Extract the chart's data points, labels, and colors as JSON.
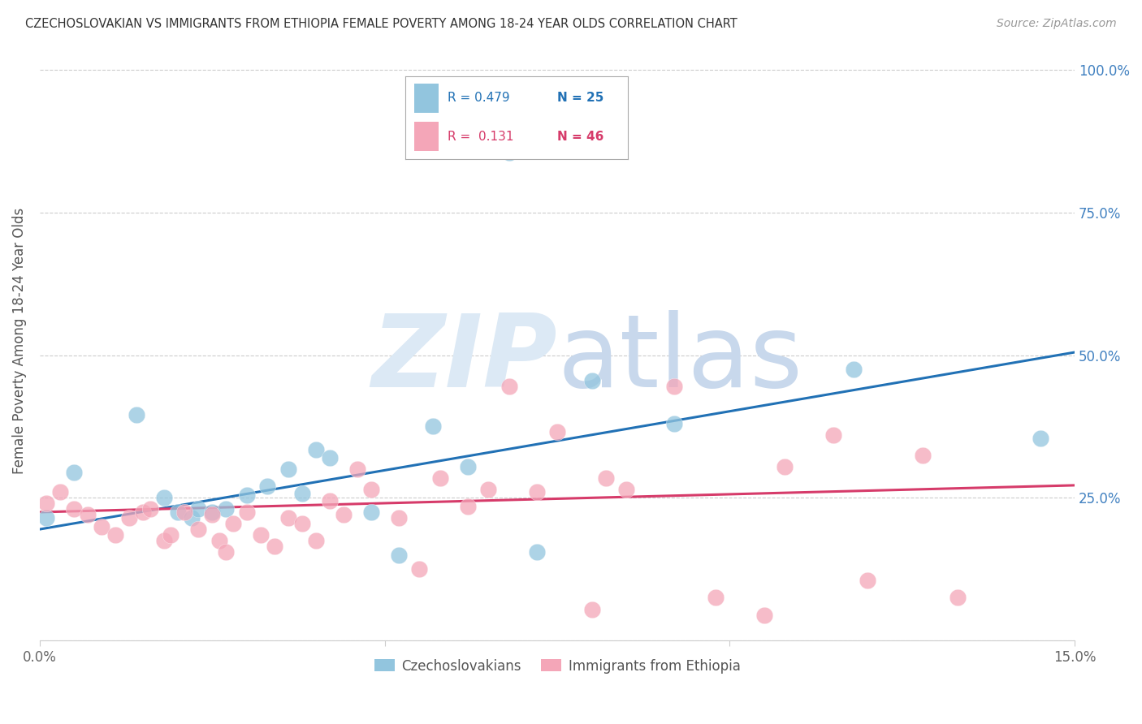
{
  "title": "CZECHOSLOVAKIAN VS IMMIGRANTS FROM ETHIOPIA FEMALE POVERTY AMONG 18-24 YEAR OLDS CORRELATION CHART",
  "source": "Source: ZipAtlas.com",
  "ylabel": "Female Poverty Among 18-24 Year Olds",
  "xlim": [
    0.0,
    0.15
  ],
  "ylim": [
    0.0,
    1.05
  ],
  "legend1_R": "0.479",
  "legend1_N": "25",
  "legend2_R": "0.131",
  "legend2_N": "46",
  "blue_color": "#92c5de",
  "pink_color": "#f4a6b8",
  "trend_blue": "#2171b5",
  "trend_pink": "#d63b6a",
  "watermark_color": "#dce9f5",
  "blue_line_x": [
    0.0,
    0.15
  ],
  "blue_line_y": [
    0.195,
    0.505
  ],
  "pink_line_x": [
    0.0,
    0.15
  ],
  "pink_line_y": [
    0.225,
    0.272
  ],
  "blue_x": [
    0.001,
    0.005,
    0.014,
    0.018,
    0.02,
    0.022,
    0.023,
    0.025,
    0.027,
    0.03,
    0.033,
    0.036,
    0.038,
    0.04,
    0.042,
    0.048,
    0.052,
    0.057,
    0.062,
    0.068,
    0.072,
    0.08,
    0.092,
    0.118,
    0.145
  ],
  "blue_y": [
    0.215,
    0.295,
    0.395,
    0.25,
    0.225,
    0.215,
    0.23,
    0.225,
    0.23,
    0.255,
    0.27,
    0.3,
    0.258,
    0.335,
    0.32,
    0.225,
    0.15,
    0.375,
    0.305,
    0.855,
    0.155,
    0.455,
    0.38,
    0.475,
    0.355
  ],
  "pink_x": [
    0.001,
    0.003,
    0.005,
    0.007,
    0.009,
    0.011,
    0.013,
    0.015,
    0.016,
    0.018,
    0.019,
    0.021,
    0.023,
    0.025,
    0.026,
    0.027,
    0.028,
    0.03,
    0.032,
    0.034,
    0.036,
    0.038,
    0.04,
    0.042,
    0.044,
    0.046,
    0.048,
    0.052,
    0.055,
    0.058,
    0.062,
    0.065,
    0.068,
    0.072,
    0.075,
    0.08,
    0.082,
    0.085,
    0.092,
    0.098,
    0.105,
    0.108,
    0.115,
    0.12,
    0.128,
    0.133
  ],
  "pink_y": [
    0.24,
    0.26,
    0.23,
    0.22,
    0.2,
    0.185,
    0.215,
    0.225,
    0.23,
    0.175,
    0.185,
    0.225,
    0.195,
    0.22,
    0.175,
    0.155,
    0.205,
    0.225,
    0.185,
    0.165,
    0.215,
    0.205,
    0.175,
    0.245,
    0.22,
    0.3,
    0.265,
    0.215,
    0.125,
    0.285,
    0.235,
    0.265,
    0.445,
    0.26,
    0.365,
    0.055,
    0.285,
    0.265,
    0.445,
    0.075,
    0.045,
    0.305,
    0.36,
    0.105,
    0.325,
    0.075
  ]
}
